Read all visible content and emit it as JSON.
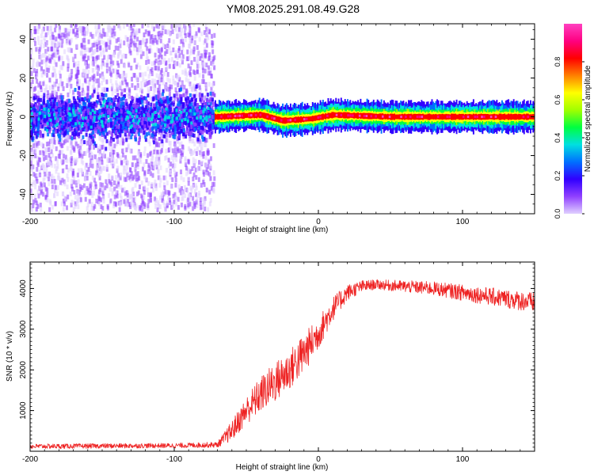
{
  "figure": {
    "title": "YM08.2025.291.08.49.G28"
  },
  "chart_data": [
    {
      "type": "heatmap",
      "title": "YM08.2025.291.08.49.G28",
      "xlabel": "Height of straight line (km)",
      "ylabel": "Frequency (Hz)",
      "xlim": [
        -200,
        150
      ],
      "ylim": [
        -50,
        48
      ],
      "xticks": [
        -200,
        -100,
        0,
        100
      ],
      "xtick_labels": [
        "-200",
        "-100",
        "0",
        "100"
      ],
      "yticks": [
        -40,
        -20,
        0,
        20,
        40
      ],
      "ytick_labels": [
        "-40",
        "-20",
        "0",
        "20",
        "40"
      ],
      "colorbar": {
        "label": "Normalized spectral amplitude",
        "range": [
          0,
          1
        ],
        "ticks": [
          0,
          0.2,
          0.4,
          0.6,
          0.8
        ],
        "tick_labels": [
          "0.0",
          "0.2",
          "0.4",
          "0.6",
          "0.8"
        ],
        "colormap": [
          "#e0d0ff",
          "#9040ff",
          "#3000ff",
          "#0070ff",
          "#00e0e0",
          "#00ff40",
          "#a0ff00",
          "#ffff00",
          "#ff8000",
          "#ff0000",
          "#ff0080",
          "#ff40c0"
        ]
      },
      "regions": [
        {
          "name": "diffuse noise",
          "x_range": [
            -200,
            -72
          ],
          "freq_spread_hz": 48,
          "core_freq_spread_hz": 10,
          "peak_amplitude": 0.35
        },
        {
          "name": "narrow carrier line",
          "x_range": [
            -72,
            150
          ],
          "freq_hz": 0,
          "half_width_hz": 4,
          "peak_amplitude": 1.0
        }
      ],
      "carrier_freq_offsets": [
        {
          "x": -70,
          "freq": 0
        },
        {
          "x": -40,
          "freq": 1
        },
        {
          "x": -25,
          "freq": -2
        },
        {
          "x": -5,
          "freq": -1
        },
        {
          "x": 10,
          "freq": 1
        },
        {
          "x": 50,
          "freq": 0
        },
        {
          "x": 100,
          "freq": 0
        },
        {
          "x": 150,
          "freq": 0
        }
      ]
    },
    {
      "type": "line",
      "xlabel": "Height of straight line (km)",
      "ylabel": "SNR (10 * v/v)",
      "xlim": [
        -200,
        150
      ],
      "ylim": [
        0,
        4650
      ],
      "xticks": [
        -200,
        -100,
        0,
        100
      ],
      "xtick_labels": [
        "-200",
        "-100",
        "0",
        "100"
      ],
      "yticks": [
        1000,
        2000,
        3000,
        4000
      ],
      "ytick_labels": [
        "1000",
        "2000",
        "3000",
        "4000"
      ],
      "series": [
        {
          "name": "SNR",
          "color": "#ee2222",
          "x": [
            -200,
            -150,
            -100,
            -70,
            -60,
            -50,
            -40,
            -30,
            -20,
            -10,
            0,
            10,
            20,
            30,
            40,
            60,
            80,
            100,
            120,
            150
          ],
          "y": [
            120,
            130,
            140,
            160,
            500,
            1000,
            1400,
            1700,
            2000,
            2400,
            2900,
            3500,
            3900,
            4050,
            4100,
            4050,
            4000,
            3900,
            3800,
            3650
          ],
          "noise": [
            60,
            60,
            60,
            70,
            250,
            350,
            450,
            500,
            500,
            500,
            400,
            300,
            200,
            150,
            120,
            150,
            170,
            200,
            220,
            250
          ]
        }
      ]
    }
  ]
}
